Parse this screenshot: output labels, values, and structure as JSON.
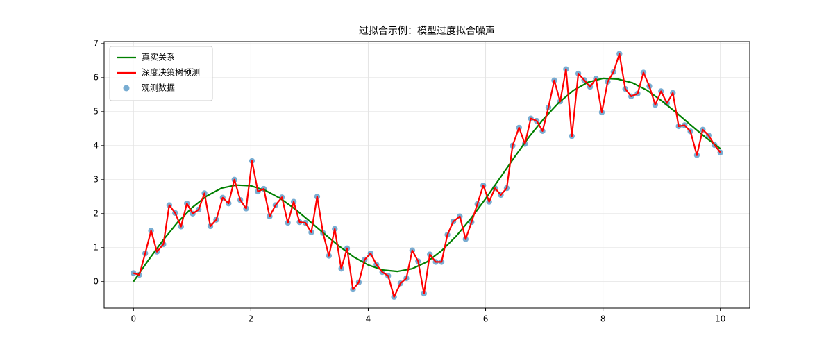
{
  "chart_data": {
    "type": "line",
    "title": "过拟合示例：模型过度拟合噪声",
    "x": [
      0,
      0.1,
      0.2,
      0.3,
      0.4,
      0.51,
      0.61,
      0.71,
      0.81,
      0.91,
      1.01,
      1.11,
      1.21,
      1.31,
      1.41,
      1.52,
      1.62,
      1.72,
      1.82,
      1.92,
      2.02,
      2.12,
      2.22,
      2.32,
      2.42,
      2.53,
      2.63,
      2.73,
      2.83,
      2.93,
      3.03,
      3.13,
      3.23,
      3.33,
      3.43,
      3.54,
      3.64,
      3.74,
      3.84,
      3.94,
      4.04,
      4.14,
      4.24,
      4.34,
      4.44,
      4.55,
      4.65,
      4.75,
      4.85,
      4.95,
      5.05,
      5.15,
      5.25,
      5.35,
      5.45,
      5.56,
      5.66,
      5.76,
      5.86,
      5.96,
      6.06,
      6.16,
      6.26,
      6.36,
      6.46,
      6.57,
      6.67,
      6.77,
      6.87,
      6.97,
      7.07,
      7.17,
      7.27,
      7.37,
      7.47,
      7.58,
      7.68,
      7.78,
      7.88,
      7.98,
      8.08,
      8.18,
      8.28,
      8.38,
      8.48,
      8.59,
      8.69,
      8.79,
      8.89,
      8.99,
      9.09,
      9.19,
      9.29,
      9.39,
      9.49,
      9.6,
      9.7,
      9.8,
      9.9,
      10
    ],
    "series": [
      {
        "name": "真实关系",
        "type": "line",
        "color": "#008000",
        "x": [
          0,
          0.25,
          0.5,
          0.75,
          1,
          1.25,
          1.5,
          1.75,
          2,
          2.25,
          2.5,
          2.75,
          3,
          3.25,
          3.5,
          3.75,
          4,
          4.25,
          4.5,
          4.75,
          5,
          5.25,
          5.5,
          5.75,
          6,
          6.25,
          6.5,
          6.75,
          7,
          7.25,
          7.5,
          7.75,
          8,
          8.25,
          8.5,
          8.75,
          9,
          9.25,
          9.5,
          9.75,
          10
        ],
        "values": [
          0,
          0.62,
          1.21,
          1.74,
          2.18,
          2.52,
          2.75,
          2.84,
          2.82,
          2.68,
          2.45,
          2.14,
          1.78,
          1.41,
          1.05,
          0.73,
          0.49,
          0.34,
          0.3,
          0.38,
          0.58,
          0.91,
          1.34,
          1.86,
          2.44,
          3.06,
          3.68,
          4.28,
          4.81,
          5.27,
          5.63,
          5.87,
          5.98,
          5.96,
          5.85,
          5.63,
          5.32,
          4.97,
          4.6,
          4.24,
          3.91
        ]
      },
      {
        "name": "深度决策树预测",
        "type": "line",
        "color": "#ff0000",
        "values": [
          0.25,
          0.2,
          0.83,
          1.5,
          0.88,
          1.1,
          2.25,
          2.02,
          1.62,
          2.3,
          2.0,
          2.12,
          2.6,
          1.63,
          1.82,
          2.47,
          2.3,
          3.0,
          2.4,
          2.15,
          3.55,
          2.65,
          2.73,
          1.92,
          2.25,
          2.48,
          1.73,
          2.35,
          1.75,
          1.73,
          1.45,
          2.5,
          1.43,
          0.76,
          1.55,
          0.38,
          0.98,
          -0.23,
          -0.02,
          0.65,
          0.83,
          0.5,
          0.28,
          0.17,
          -0.45,
          -0.05,
          0.1,
          0.92,
          0.6,
          -0.35,
          0.8,
          0.58,
          0.58,
          1.38,
          1.77,
          1.92,
          1.25,
          1.75,
          2.28,
          2.83,
          2.35,
          2.75,
          2.55,
          2.75,
          4.0,
          4.53,
          4.05,
          4.8,
          4.73,
          4.43,
          5.12,
          5.92,
          5.3,
          6.25,
          4.28,
          6.12,
          5.93,
          5.73,
          5.97,
          4.98,
          5.88,
          6.17,
          6.7,
          5.67,
          5.45,
          5.53,
          6.15,
          5.75,
          5.2,
          5.6,
          5.25,
          5.55,
          4.57,
          4.6,
          4.42,
          3.72,
          4.47,
          4.3,
          4.02,
          3.8
        ]
      },
      {
        "name": "观测数据",
        "type": "scatter",
        "color": "#1f77b4",
        "values": [
          0.25,
          0.2,
          0.83,
          1.5,
          0.88,
          1.1,
          2.25,
          2.02,
          1.62,
          2.3,
          2.0,
          2.12,
          2.6,
          1.63,
          1.82,
          2.47,
          2.3,
          3.0,
          2.4,
          2.15,
          3.55,
          2.65,
          2.73,
          1.92,
          2.25,
          2.48,
          1.73,
          2.35,
          1.75,
          1.73,
          1.45,
          2.5,
          1.43,
          0.76,
          1.55,
          0.38,
          0.98,
          -0.23,
          -0.02,
          0.65,
          0.83,
          0.5,
          0.28,
          0.17,
          -0.45,
          -0.05,
          0.1,
          0.92,
          0.6,
          -0.35,
          0.8,
          0.58,
          0.58,
          1.38,
          1.77,
          1.92,
          1.25,
          1.75,
          2.28,
          2.83,
          2.35,
          2.75,
          2.55,
          2.75,
          4.0,
          4.53,
          4.05,
          4.8,
          4.73,
          4.43,
          5.12,
          5.92,
          5.3,
          6.25,
          4.28,
          6.12,
          5.93,
          5.73,
          5.97,
          4.98,
          5.88,
          6.17,
          6.7,
          5.67,
          5.45,
          5.53,
          6.15,
          5.75,
          5.2,
          5.6,
          5.25,
          5.55,
          4.57,
          4.6,
          4.42,
          3.72,
          4.47,
          4.3,
          4.02,
          3.8
        ]
      }
    ],
    "xlim": [
      -0.5,
      10.5
    ],
    "xticks": [
      0,
      2,
      4,
      6,
      8,
      10
    ],
    "ylim": [
      -0.78,
      7.06
    ],
    "yticks": [
      0,
      1,
      2,
      3,
      4,
      5,
      6,
      7
    ],
    "grid": true,
    "legend": "upper left"
  }
}
